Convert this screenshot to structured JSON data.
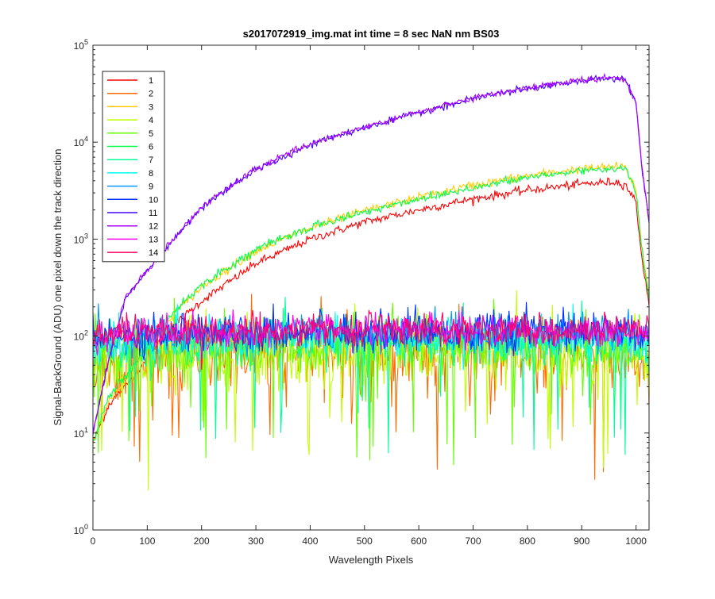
{
  "chart_data": {
    "type": "line",
    "title": "s2017072919_img.mat int time = 8 sec  NaN nm BS03",
    "xlabel": "Wavelength Pixels",
    "ylabel": "Signal-BackGround (ADU) one pixel down the track direction",
    "xlim": [
      0,
      1024
    ],
    "ylim": [
      1,
      100000
    ],
    "yscale": "log",
    "grid": false,
    "legend_position": "top-left",
    "x_ticks": [
      0,
      100,
      200,
      300,
      400,
      500,
      600,
      700,
      800,
      900,
      1000
    ],
    "y_ticks": [
      {
        "value": 1,
        "base": "10",
        "exp": "0"
      },
      {
        "value": 10,
        "base": "10",
        "exp": "1"
      },
      {
        "value": 100,
        "base": "10",
        "exp": "2"
      },
      {
        "value": 1000,
        "base": "10",
        "exp": "3"
      },
      {
        "value": 10000,
        "base": "10",
        "exp": "4"
      },
      {
        "value": 100000,
        "base": "10",
        "exp": "5"
      }
    ],
    "x_sample": [
      0,
      30,
      60,
      100,
      150,
      200,
      300,
      400,
      500,
      600,
      700,
      800,
      900,
      960,
      980,
      1000,
      1010,
      1024
    ],
    "series": [
      {
        "name": "1",
        "color": "#ff0000",
        "noise": 0.04,
        "values": [
          8,
          20,
          30,
          60,
          130,
          230,
          560,
          1000,
          1500,
          2000,
          2600,
          3200,
          3700,
          3900,
          3700,
          2400,
          700,
          200
        ]
      },
      {
        "name": "2",
        "color": "#ff6a00",
        "noise": 0.35,
        "values": [
          40,
          50,
          55,
          58,
          60,
          62,
          64,
          66,
          66,
          66,
          66,
          65,
          64,
          63,
          62,
          60,
          50,
          40
        ]
      },
      {
        "name": "3",
        "color": "#ffcc00",
        "noise": 0.04,
        "values": [
          8,
          22,
          35,
          75,
          170,
          320,
          760,
          1300,
          1950,
          2700,
          3600,
          4500,
          5300,
          5600,
          5500,
          3200,
          900,
          250
        ]
      },
      {
        "name": "4",
        "color": "#bfff00",
        "noise": 0.35,
        "values": [
          45,
          55,
          58,
          60,
          62,
          64,
          66,
          68,
          68,
          68,
          68,
          67,
          66,
          64,
          63,
          62,
          55,
          45
        ]
      },
      {
        "name": "5",
        "color": "#66ff00",
        "noise": 0.28,
        "values": [
          60,
          68,
          70,
          72,
          74,
          76,
          78,
          80,
          80,
          80,
          80,
          79,
          78,
          76,
          75,
          74,
          70,
          60
        ]
      },
      {
        "name": "6",
        "color": "#00ff44",
        "noise": 0.04,
        "values": [
          8,
          24,
          38,
          80,
          180,
          340,
          780,
          1320,
          1900,
          2600,
          3400,
          4300,
          5100,
          5400,
          5300,
          3100,
          850,
          240
        ]
      },
      {
        "name": "7",
        "color": "#00ff99",
        "noise": 0.22,
        "values": [
          70,
          76,
          78,
          80,
          82,
          84,
          86,
          88,
          88,
          88,
          88,
          87,
          86,
          85,
          84,
          82,
          78,
          70
        ]
      },
      {
        "name": "8",
        "color": "#00ffee",
        "noise": 0.2,
        "values": [
          80,
          86,
          88,
          90,
          92,
          94,
          96,
          98,
          98,
          98,
          98,
          97,
          96,
          95,
          94,
          92,
          88,
          80
        ]
      },
      {
        "name": "9",
        "color": "#0099ff",
        "noise": 0.18,
        "values": [
          90,
          95,
          98,
          100,
          102,
          104,
          106,
          108,
          108,
          108,
          108,
          107,
          106,
          105,
          104,
          102,
          98,
          90
        ]
      },
      {
        "name": "10",
        "color": "#0033ff",
        "noise": 0.18,
        "values": [
          95,
          100,
          104,
          106,
          108,
          110,
          112,
          114,
          114,
          114,
          114,
          113,
          112,
          110,
          108,
          106,
          100,
          95
        ]
      },
      {
        "name": "11",
        "color": "#4400ff",
        "noise": 0.03,
        "values": [
          10,
          60,
          250,
          470,
          1000,
          2100,
          5200,
          9500,
          14000,
          20000,
          28000,
          36000,
          43000,
          46000,
          44000,
          25000,
          6000,
          1500
        ]
      },
      {
        "name": "12",
        "color": "#aa00ff",
        "noise": 0.03,
        "values": [
          10,
          60,
          250,
          480,
          1020,
          2150,
          5300,
          9700,
          14300,
          20400,
          28500,
          36500,
          43500,
          46500,
          44500,
          25500,
          6200,
          1550
        ]
      },
      {
        "name": "13",
        "color": "#ff00ee",
        "noise": 0.15,
        "values": [
          100,
          104,
          106,
          108,
          110,
          112,
          114,
          116,
          116,
          116,
          116,
          115,
          114,
          112,
          110,
          108,
          104,
          100
        ]
      },
      {
        "name": "14",
        "color": "#ff0066",
        "noise": 0.15,
        "values": [
          100,
          104,
          106,
          108,
          110,
          112,
          114,
          116,
          116,
          116,
          116,
          115,
          114,
          112,
          110,
          108,
          104,
          100
        ]
      }
    ]
  }
}
